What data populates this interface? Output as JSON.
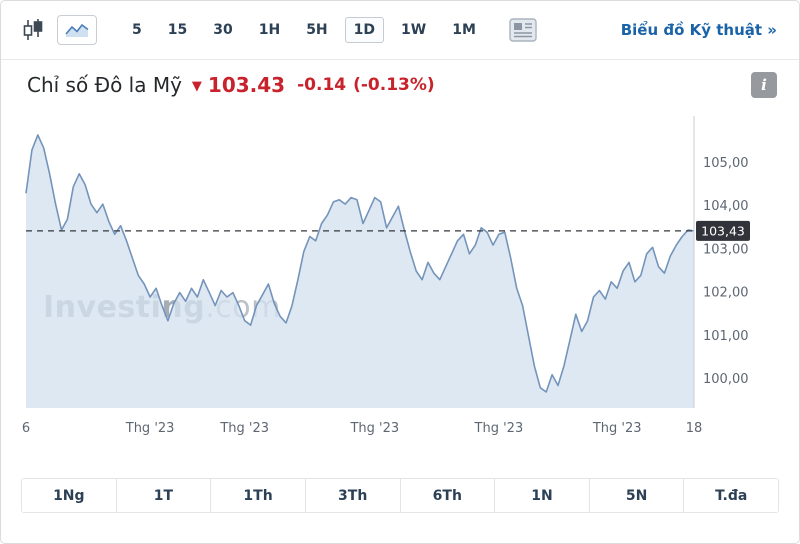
{
  "colors": {
    "red": "#c8232c",
    "link_blue": "#1b63a8",
    "line": "#7494ba",
    "area_fill": "#d5e1ef",
    "tag_bg": "#30343a",
    "axis_line": "#c9ccd1",
    "dashed_line": "#33373c"
  },
  "toolbar": {
    "intervals": [
      "5",
      "15",
      "30",
      "1H",
      "5H",
      "1D",
      "1W",
      "1M"
    ],
    "selected_interval": "1D",
    "technical_link": "Biểu đồ Kỹ thuật »"
  },
  "header": {
    "title": "Chỉ số Đô la Mỹ",
    "down_arrow": "▼",
    "price": "103.43",
    "change": "-0.14",
    "change_percent": "(-0.13%)",
    "info_label": "i"
  },
  "watermark": {
    "bold": "Investing",
    "light": ".com"
  },
  "chart_data": {
    "type": "area",
    "title": "Chỉ số Đô la Mỹ",
    "xlabel": "",
    "ylabel": "",
    "ylim": [
      99.33,
      105.95
    ],
    "grid": false,
    "legend": "none",
    "current_price": 103.43,
    "current_price_label": "103,43",
    "yticks": [
      {
        "v": 105,
        "label": "105,00"
      },
      {
        "v": 104,
        "label": "104,00"
      },
      {
        "v": 103,
        "label": "103,00"
      },
      {
        "v": 102,
        "label": "102,00"
      },
      {
        "v": 101,
        "label": "101,00"
      },
      {
        "v": 100,
        "label": "100,00"
      }
    ],
    "xticks": [
      {
        "i": 0,
        "label": "6"
      },
      {
        "i": 21,
        "label": "Thg '23"
      },
      {
        "i": 37,
        "label": "Thg '23"
      },
      {
        "i": 59,
        "label": "Thg '23"
      },
      {
        "i": 80,
        "label": "Thg '23"
      },
      {
        "i": 100,
        "label": "Thg '23"
      },
      {
        "i": 113,
        "label": "18"
      }
    ],
    "values": [
      104.3,
      105.3,
      105.65,
      105.35,
      104.75,
      104.05,
      103.45,
      103.7,
      104.45,
      104.75,
      104.5,
      104.05,
      103.85,
      104.05,
      103.65,
      103.35,
      103.55,
      103.2,
      102.8,
      102.4,
      102.2,
      101.9,
      102.1,
      101.7,
      101.35,
      101.75,
      102.0,
      101.8,
      102.1,
      101.9,
      102.3,
      102.0,
      101.7,
      102.05,
      101.9,
      102.0,
      101.7,
      101.35,
      101.25,
      101.7,
      101.95,
      102.2,
      101.75,
      101.45,
      101.3,
      101.7,
      102.3,
      102.95,
      103.3,
      103.2,
      103.6,
      103.8,
      104.1,
      104.15,
      104.05,
      104.2,
      104.15,
      103.6,
      103.9,
      104.2,
      104.1,
      103.5,
      103.75,
      104.0,
      103.45,
      102.95,
      102.5,
      102.3,
      102.7,
      102.45,
      102.3,
      102.6,
      102.9,
      103.2,
      103.35,
      102.9,
      103.1,
      103.5,
      103.4,
      103.1,
      103.35,
      103.4,
      102.8,
      102.1,
      101.7,
      101.0,
      100.3,
      99.8,
      99.7,
      100.1,
      99.85,
      100.3,
      100.9,
      101.5,
      101.1,
      101.35,
      101.9,
      102.05,
      101.85,
      102.25,
      102.1,
      102.5,
      102.7,
      102.25,
      102.4,
      102.9,
      103.05,
      102.6,
      102.45,
      102.85,
      103.1,
      103.3,
      103.45,
      103.43
    ]
  },
  "range_buttons": [
    "1Ng",
    "1T",
    "1Th",
    "3Th",
    "6Th",
    "1N",
    "5N",
    "T.đa"
  ]
}
